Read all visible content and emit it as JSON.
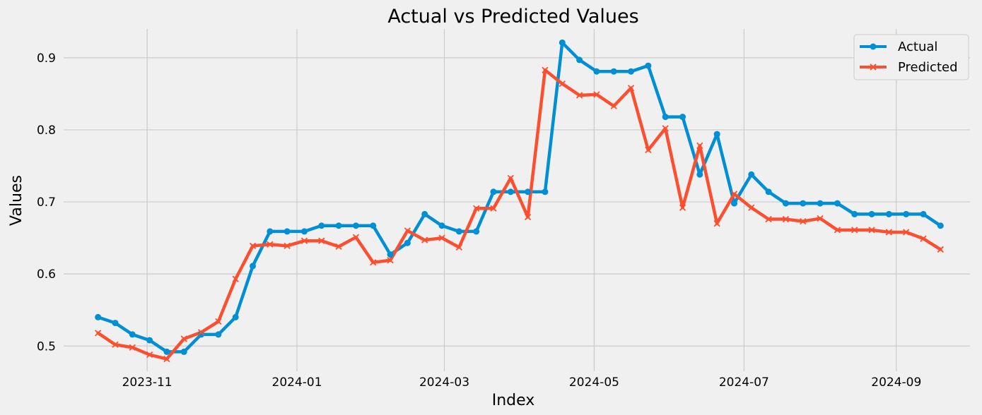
{
  "chart_data": {
    "type": "line",
    "title": "Actual vs Predicted Values",
    "xlabel": "Index",
    "ylabel": "Values",
    "x_ticks": [
      "2023-11",
      "2024-01",
      "2024-03",
      "2024-05",
      "2024-07",
      "2024-09"
    ],
    "y_ticks": [
      "0.5",
      "0.6",
      "0.7",
      "0.8",
      "0.9"
    ],
    "xlim": [
      "2023-09-28",
      "2024-10-01"
    ],
    "ylim": [
      0.465,
      0.94
    ],
    "grid": true,
    "legend_position": "top-right",
    "x": [
      "2023-10-12",
      "2023-10-19",
      "2023-10-26",
      "2023-11-02",
      "2023-11-09",
      "2023-11-16",
      "2023-11-23",
      "2023-11-30",
      "2023-12-07",
      "2023-12-14",
      "2023-12-21",
      "2023-12-28",
      "2024-01-04",
      "2024-01-11",
      "2024-01-18",
      "2024-01-25",
      "2024-02-01",
      "2024-02-08",
      "2024-02-15",
      "2024-02-22",
      "2024-02-29",
      "2024-03-07",
      "2024-03-14",
      "2024-03-21",
      "2024-03-28",
      "2024-04-04",
      "2024-04-11",
      "2024-04-18",
      "2024-04-25",
      "2024-05-02",
      "2024-05-09",
      "2024-05-16",
      "2024-05-23",
      "2024-05-30",
      "2024-06-06",
      "2024-06-13",
      "2024-06-20",
      "2024-06-27",
      "2024-07-04",
      "2024-07-11",
      "2024-07-18",
      "2024-07-25",
      "2024-08-01",
      "2024-08-08",
      "2024-08-15",
      "2024-08-22",
      "2024-08-29",
      "2024-09-05",
      "2024-09-12",
      "2024-09-19"
    ],
    "series": [
      {
        "name": "Actual",
        "color": "#008fd5",
        "marker": "circle",
        "values": [
          0.54,
          0.532,
          0.516,
          0.508,
          0.492,
          0.492,
          0.516,
          0.516,
          0.54,
          0.611,
          0.659,
          0.659,
          0.659,
          0.667,
          0.667,
          0.667,
          0.667,
          0.627,
          0.643,
          0.683,
          0.667,
          0.659,
          0.659,
          0.714,
          0.714,
          0.714,
          0.714,
          0.921,
          0.897,
          0.881,
          0.881,
          0.881,
          0.889,
          0.818,
          0.818,
          0.738,
          0.794,
          0.698,
          0.738,
          0.714,
          0.698,
          0.698,
          0.698,
          0.698,
          0.683,
          0.683,
          0.683,
          0.683,
          0.683,
          0.667
        ]
      },
      {
        "name": "Predicted",
        "color": "#fc4f30",
        "marker": "x",
        "values": [
          0.518,
          0.502,
          0.498,
          0.488,
          0.482,
          0.51,
          0.519,
          0.534,
          0.593,
          0.639,
          0.641,
          0.639,
          0.646,
          0.646,
          0.638,
          0.651,
          0.616,
          0.619,
          0.66,
          0.647,
          0.65,
          0.637,
          0.691,
          0.691,
          0.733,
          0.679,
          0.883,
          0.864,
          0.848,
          0.849,
          0.833,
          0.858,
          0.772,
          0.802,
          0.692,
          0.778,
          0.67,
          0.711,
          0.692,
          0.676,
          0.676,
          0.673,
          0.677,
          0.661,
          0.661,
          0.661,
          0.658,
          0.658,
          0.649,
          0.634
        ]
      }
    ]
  }
}
